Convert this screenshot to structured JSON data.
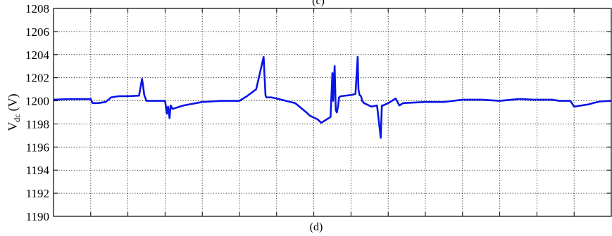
{
  "chart_data": {
    "type": "line",
    "title": "",
    "top_label": "(c)",
    "bottom_label": "(d)",
    "xlabel": "",
    "ylabel_main": "V",
    "ylabel_sub": "dc",
    "ylabel_unit": "(V)",
    "ylim": [
      1190,
      1208
    ],
    "yticks": [
      1190,
      1192,
      1194,
      1196,
      1198,
      1200,
      1202,
      1204,
      1206,
      1208
    ],
    "xlim": [
      0,
      15
    ],
    "xticks": [
      0,
      1,
      2,
      3,
      4,
      5,
      6,
      7,
      8,
      9,
      10,
      11,
      12,
      13,
      14,
      15
    ],
    "show_x_tick_labels": false,
    "grid": true,
    "line_color": "#0a14e6",
    "series": [
      {
        "x": [
          0,
          0.4,
          1.0,
          1.05,
          1.2,
          1.4,
          1.55,
          1.75,
          2.0,
          2.3,
          2.38,
          2.4,
          2.44,
          2.5,
          3.0,
          3.05,
          3.08,
          3.12,
          3.15,
          3.2,
          3.5,
          4.0,
          4.5,
          4.8,
          5.0,
          5.2,
          5.45,
          5.65,
          5.7,
          5.72,
          5.75,
          5.85,
          6.0,
          6.5,
          6.8,
          6.9,
          7.1,
          7.2,
          7.3,
          7.45,
          7.5,
          7.52,
          7.56,
          7.59,
          7.62,
          7.65,
          7.68,
          7.72,
          8.0,
          8.12,
          8.18,
          8.2,
          8.23,
          8.27,
          8.3,
          8.35,
          8.55,
          8.7,
          8.8,
          8.83,
          8.86,
          9.0,
          9.2,
          9.3,
          9.4,
          10.0,
          10.5,
          11.0,
          11.5,
          12.0,
          12.5,
          12.6,
          12.9,
          13.4,
          13.6,
          13.9,
          14.0,
          14.4,
          14.5,
          14.7,
          15.0
        ],
        "y": [
          1200.1,
          1200.15,
          1200.15,
          1199.8,
          1199.8,
          1199.9,
          1200.3,
          1200.4,
          1200.4,
          1200.45,
          1201.9,
          1201.5,
          1200.5,
          1200.0,
          1200.0,
          1198.9,
          1199.5,
          1198.5,
          1199.6,
          1199.3,
          1199.6,
          1199.9,
          1200.0,
          1200.0,
          1200.0,
          1200.4,
          1201.0,
          1203.8,
          1200.5,
          1200.3,
          1200.3,
          1200.3,
          1200.2,
          1199.8,
          1199.0,
          1198.7,
          1198.4,
          1198.1,
          1198.3,
          1198.6,
          1202.4,
          1200.0,
          1203.0,
          1199.2,
          1199.0,
          1199.5,
          1200.3,
          1200.4,
          1200.5,
          1200.6,
          1203.8,
          1201.0,
          1200.5,
          1200.4,
          1200.0,
          1199.8,
          1199.5,
          1199.6,
          1196.8,
          1199.6,
          1199.6,
          1199.8,
          1200.2,
          1199.6,
          1199.8,
          1199.9,
          1199.9,
          1200.1,
          1200.1,
          1200.0,
          1200.15,
          1200.15,
          1200.1,
          1200.1,
          1200.0,
          1200.0,
          1199.5,
          1199.7,
          1199.8,
          1199.95,
          1200.0
        ]
      }
    ]
  }
}
